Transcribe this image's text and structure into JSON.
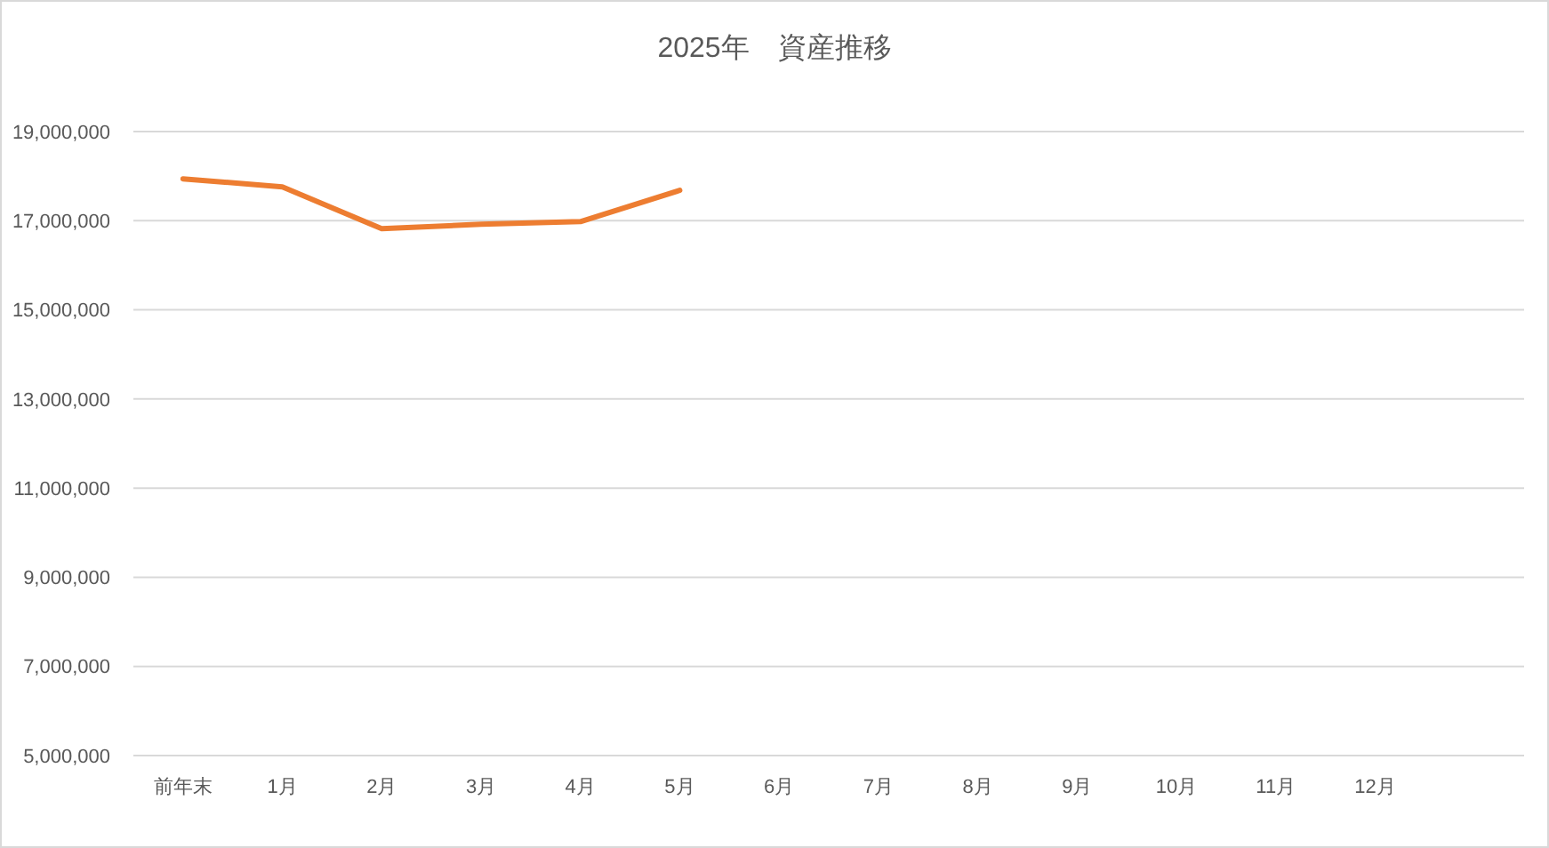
{
  "chart_data": {
    "type": "line",
    "title": "2025年　資産推移",
    "categories": [
      "前年末",
      "1月",
      "2月",
      "3月",
      "4月",
      "5月",
      "6月",
      "7月",
      "8月",
      "9月",
      "10月",
      "11月",
      "12月",
      null
    ],
    "series": [
      {
        "color": "#ed7d31",
        "values": [
          17940000,
          17760000,
          16820000,
          16920000,
          16980000,
          17680000,
          null,
          null,
          null,
          null,
          null,
          null,
          null,
          null
        ]
      }
    ],
    "ylim": [
      5000000,
      19000000
    ],
    "yticks": [
      {
        "value": 5000000,
        "label": "5,000,000"
      },
      {
        "value": 7000000,
        "label": "7,000,000"
      },
      {
        "value": 9000000,
        "label": "9,000,000"
      },
      {
        "value": 11000000,
        "label": "11,000,000"
      },
      {
        "value": 13000000,
        "label": "13,000,000"
      },
      {
        "value": 15000000,
        "label": "15,000,000"
      },
      {
        "value": 17000000,
        "label": "17,000,000"
      },
      {
        "value": 19000000,
        "label": "19,000,000"
      }
    ],
    "grid": "y",
    "marker": "none",
    "line_style": "solid"
  }
}
